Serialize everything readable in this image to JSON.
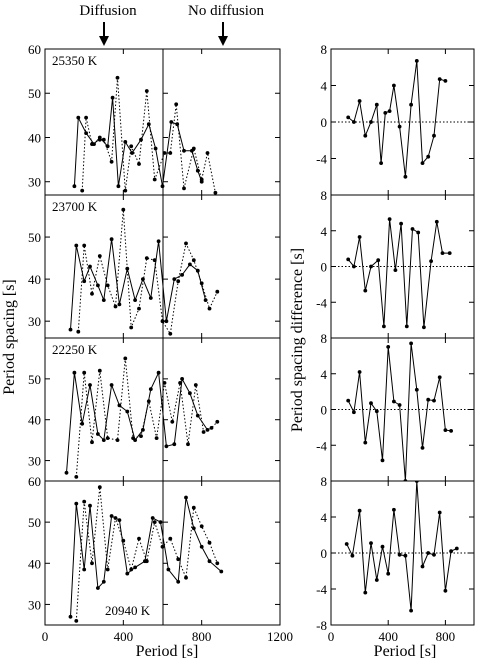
{
  "header": {
    "left": "Diffusion",
    "right": "No diffusion"
  },
  "chart_data": [
    {
      "type": "line",
      "panel": "left-column",
      "row": 1,
      "temperature": "25350 K",
      "ylabel": "Period spacing [s]",
      "xlabel": "Period [s]",
      "xlim": [
        0,
        1200
      ],
      "ylim": [
        27,
        60
      ],
      "yticks": [
        30,
        40,
        50,
        60
      ],
      "xticks": [
        0,
        400,
        800,
        1200
      ],
      "series": [
        {
          "style": "solid",
          "x": [
            150,
            170,
            210,
            250,
            280,
            320,
            345,
            375,
            410,
            445,
            490,
            530,
            565,
            600,
            645,
            675,
            710,
            750,
            780,
            800
          ],
          "y": [
            29,
            44.5,
            41,
            38.5,
            40,
            38,
            49,
            29,
            39,
            36.5,
            39.5,
            43,
            37.5,
            29,
            43.5,
            43,
            37,
            37,
            32.5,
            30
          ]
        },
        {
          "style": "dotted",
          "x": [
            190,
            210,
            240,
            280,
            300,
            340,
            370,
            410,
            440,
            480,
            520,
            560,
            610,
            640,
            670,
            710,
            760,
            800,
            830,
            870
          ],
          "y": [
            28,
            44.5,
            38.5,
            39.5,
            39.5,
            34.5,
            53.5,
            28,
            38,
            34,
            50.5,
            30.5,
            36.5,
            36.5,
            47.5,
            28.5,
            37.5,
            30.5,
            36.5,
            27.5
          ]
        }
      ]
    },
    {
      "type": "line",
      "panel": "left-column",
      "row": 2,
      "temperature": "23700 K",
      "ylabel": "Period spacing [s]",
      "xlabel": "Period [s]",
      "xlim": [
        0,
        1200
      ],
      "ylim": [
        26,
        60
      ],
      "yticks": [
        30,
        40,
        50
      ],
      "xticks": [
        0,
        400,
        800,
        1200
      ],
      "series": [
        {
          "style": "solid",
          "x": [
            130,
            160,
            200,
            230,
            270,
            300,
            340,
            380,
            420,
            460,
            500,
            540,
            580,
            620,
            660,
            700,
            740,
            780,
            820
          ],
          "y": [
            28,
            48,
            39.5,
            43,
            38.5,
            35,
            49.5,
            34,
            42.5,
            35,
            40,
            35.5,
            49,
            30,
            40,
            41,
            43.5,
            42,
            35
          ]
        },
        {
          "style": "dotted",
          "x": [
            170,
            200,
            240,
            280,
            320,
            360,
            400,
            440,
            480,
            520,
            560,
            600,
            640,
            680,
            720,
            760,
            800,
            840,
            880
          ],
          "y": [
            27.5,
            48,
            36.5,
            45.5,
            38.5,
            33.5,
            56.5,
            28.5,
            33,
            45,
            44.5,
            30,
            27,
            39.5,
            48.5,
            44.5,
            39,
            33,
            37
          ]
        }
      ]
    },
    {
      "type": "line",
      "panel": "left-column",
      "row": 3,
      "temperature": "22250 K",
      "ylabel": "Period spacing [s]",
      "xlabel": "Period [s]",
      "xlim": [
        0,
        1200
      ],
      "ylim": [
        25,
        60
      ],
      "yticks": [
        30,
        40,
        50
      ],
      "xticks": [
        0,
        400,
        800,
        1200
      ],
      "series": [
        {
          "style": "solid",
          "x": [
            110,
            150,
            190,
            230,
            270,
            300,
            340,
            380,
            420,
            460,
            500,
            540,
            580,
            620,
            660,
            700,
            740,
            780,
            830
          ],
          "y": [
            27,
            51.5,
            39,
            48.5,
            36.5,
            35,
            48.5,
            43.5,
            42,
            35,
            37.5,
            47.5,
            51.5,
            33.5,
            34,
            50,
            46.5,
            41,
            37.5
          ]
        },
        {
          "style": "dotted",
          "x": [
            160,
            200,
            240,
            280,
            320,
            370,
            410,
            450,
            490,
            530,
            570,
            610,
            650,
            690,
            730,
            770,
            810,
            850,
            880
          ],
          "y": [
            26,
            51.5,
            34.5,
            52,
            35.5,
            35,
            55,
            35.5,
            36,
            44.5,
            35.5,
            49,
            39.5,
            49,
            34,
            48.5,
            37,
            38,
            39.5
          ]
        }
      ]
    },
    {
      "type": "line",
      "panel": "left-column",
      "row": 4,
      "temperature": "20940 K",
      "ylabel": "Period spacing [s]",
      "xlabel": "Period [s]",
      "xlim": [
        0,
        1200
      ],
      "ylim": [
        25,
        60
      ],
      "yticks": [
        30,
        40,
        50,
        60
      ],
      "xticks": [
        0,
        400,
        800,
        1200
      ],
      "series": [
        {
          "style": "solid",
          "x": [
            130,
            160,
            200,
            230,
            270,
            300,
            340,
            380,
            420,
            460,
            510,
            550,
            590,
            630,
            680,
            720,
            760,
            800,
            840,
            900
          ],
          "y": [
            27,
            54.5,
            38.5,
            54,
            34,
            35.5,
            51.5,
            50.5,
            37.5,
            39,
            40.5,
            51,
            50,
            38.5,
            35.5,
            56,
            48.5,
            44,
            40.5,
            38
          ]
        },
        {
          "style": "dotted",
          "x": [
            160,
            200,
            240,
            280,
            320,
            360,
            400,
            440,
            480,
            520,
            560,
            600,
            640,
            680,
            720,
            760,
            800,
            840,
            880
          ],
          "y": [
            26,
            55,
            40,
            58.5,
            38.5,
            51,
            45.5,
            38.5,
            46,
            40.5,
            50,
            44,
            46,
            41,
            36.5,
            53.5,
            49,
            45,
            40
          ]
        }
      ]
    },
    {
      "type": "line",
      "panel": "right-column",
      "row": 1,
      "ylabel": "Period spacing difference [s]",
      "xlabel": "Period [s]",
      "xlim": [
        0,
        1000
      ],
      "ylim": [
        -8,
        8
      ],
      "yticks": [
        -4,
        0,
        4,
        8
      ],
      "xticks": [
        0,
        400,
        800
      ],
      "series": [
        {
          "style": "solid",
          "x": [
            120,
            160,
            200,
            240,
            280,
            320,
            350,
            380,
            410,
            440,
            480,
            520,
            560,
            600,
            640,
            680,
            720,
            760,
            800
          ],
          "y": [
            0.5,
            0,
            2.3,
            -1.5,
            0,
            1.9,
            -4.5,
            1,
            1.2,
            4,
            -0.5,
            -6,
            1.9,
            6.7,
            -4.5,
            -3.8,
            -1.5,
            4.7,
            4.5
          ]
        }
      ]
    },
    {
      "type": "line",
      "panel": "right-column",
      "row": 2,
      "ylabel": "Period spacing difference [s]",
      "xlabel": "Period [s]",
      "xlim": [
        0,
        1000
      ],
      "ylim": [
        -8,
        8
      ],
      "yticks": [
        -4,
        0,
        4,
        8
      ],
      "xticks": [
        0,
        400,
        800
      ],
      "series": [
        {
          "style": "solid",
          "x": [
            120,
            160,
            200,
            240,
            280,
            330,
            370,
            410,
            450,
            490,
            530,
            570,
            610,
            650,
            700,
            740,
            780,
            830
          ],
          "y": [
            0.8,
            0,
            3.3,
            -2.7,
            0,
            0.7,
            -6.7,
            5.3,
            -0.4,
            4.8,
            -6.7,
            4.2,
            3.8,
            -6.8,
            0.6,
            5,
            1.5,
            1.5
          ]
        }
      ]
    },
    {
      "type": "line",
      "panel": "right-column",
      "row": 3,
      "ylabel": "Period spacing difference [s]",
      "xlabel": "Period [s]",
      "xlim": [
        0,
        1000
      ],
      "ylim": [
        -8,
        8
      ],
      "yticks": [
        -4,
        0,
        4,
        8
      ],
      "xticks": [
        0,
        400,
        800
      ],
      "series": [
        {
          "style": "solid",
          "x": [
            120,
            160,
            200,
            240,
            280,
            320,
            360,
            400,
            440,
            480,
            520,
            560,
            600,
            640,
            680,
            720,
            760,
            800,
            840
          ],
          "y": [
            1,
            -0.3,
            4.2,
            -3.7,
            0.7,
            -0.2,
            -5.7,
            7,
            0.9,
            0.5,
            -8,
            7.4,
            2.2,
            -4.3,
            1.1,
            1,
            3.6,
            -2.3,
            -2.4
          ]
        }
      ]
    },
    {
      "type": "line",
      "panel": "right-column",
      "row": 4,
      "ylabel": "Period spacing difference [s]",
      "xlabel": "Period [s]",
      "xlim": [
        0,
        1000
      ],
      "ylim": [
        -8,
        8
      ],
      "yticks": [
        -8,
        -4,
        0,
        4,
        8
      ],
      "xticks": [
        0,
        400,
        800
      ],
      "series": [
        {
          "style": "solid",
          "x": [
            110,
            150,
            200,
            240,
            280,
            320,
            360,
            400,
            440,
            480,
            520,
            560,
            600,
            640,
            680,
            720,
            760,
            800,
            840,
            880
          ],
          "y": [
            1,
            -0.3,
            4.7,
            -4.4,
            1.1,
            -3,
            0.7,
            -2.3,
            4.8,
            -0.2,
            -0.3,
            -6.4,
            8,
            -1.5,
            0,
            -0.2,
            4.5,
            -4.2,
            0.2,
            0.5
          ]
        }
      ]
    }
  ]
}
